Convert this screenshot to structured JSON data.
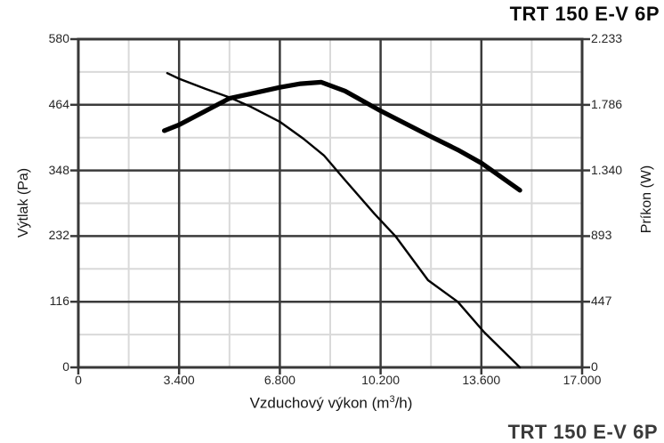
{
  "title": "TRT 150 E-V 6P",
  "footer_cropped_title": "TRT 150 E-V 6P",
  "chart_data": {
    "type": "line",
    "title": "TRT 150 E-V 6P",
    "grid": "major and minor gridlines on",
    "legend": "none",
    "axes": {
      "x": {
        "min": 0,
        "max": 17000,
        "minor_step": 1700,
        "title": {
          "pre": "Vzduchový výkon (m",
          "sup": "3",
          "post": "/h)"
        },
        "ticks": [
          {
            "v": 0,
            "label": "0"
          },
          {
            "v": 3400,
            "label": "3.400"
          },
          {
            "v": 6800,
            "label": "6.800"
          },
          {
            "v": 10200,
            "label": "10.200"
          },
          {
            "v": 13600,
            "label": "13.600"
          },
          {
            "v": 17000,
            "label": "17.000"
          }
        ]
      },
      "y_left": {
        "min": 0,
        "max": 580,
        "minor_step": 58,
        "title": "Výtlak (Pa)",
        "ticks": [
          {
            "v": 580,
            "label": "580"
          },
          {
            "v": 464,
            "label": "464"
          },
          {
            "v": 348,
            "label": "348"
          },
          {
            "v": 232,
            "label": "232"
          },
          {
            "v": 116,
            "label": "116"
          },
          {
            "v": 0,
            "label": "0"
          }
        ]
      },
      "y_right": {
        "min": 0,
        "max": 2233,
        "title": "Príkon (W)",
        "ticks": [
          {
            "v": 2233,
            "label": "2.233"
          },
          {
            "v": 1786,
            "label": "1.786"
          },
          {
            "v": 1340,
            "label": "1.340"
          },
          {
            "v": 893,
            "label": "893"
          },
          {
            "v": 447,
            "label": "447"
          },
          {
            "v": 0,
            "label": "0"
          }
        ]
      }
    },
    "series": [
      {
        "name": "Výtlak (Pa) — pressure curve",
        "axis": "left",
        "line_weight": "thin",
        "color": "#000000",
        "points": [
          [
            3000,
            520
          ],
          [
            3400,
            510
          ],
          [
            4300,
            492
          ],
          [
            5100,
            477
          ],
          [
            5800,
            461
          ],
          [
            6800,
            434
          ],
          [
            7600,
            404
          ],
          [
            8300,
            374
          ],
          [
            9000,
            331
          ],
          [
            10000,
            271
          ],
          [
            10700,
            232
          ],
          [
            11800,
            154
          ],
          [
            12800,
            116
          ],
          [
            13700,
            62
          ],
          [
            14900,
            0
          ]
        ]
      },
      {
        "name": "Príkon (W) — power curve",
        "axis": "right",
        "line_weight": "thick",
        "color": "#000000",
        "points": [
          [
            2900,
            1610
          ],
          [
            3400,
            1650
          ],
          [
            4300,
            1745
          ],
          [
            5100,
            1830
          ],
          [
            5800,
            1860
          ],
          [
            6800,
            1905
          ],
          [
            7500,
            1930
          ],
          [
            8200,
            1940
          ],
          [
            9000,
            1880
          ],
          [
            10200,
            1745
          ],
          [
            11900,
            1570
          ],
          [
            12800,
            1480
          ],
          [
            13600,
            1390
          ],
          [
            14900,
            1205
          ]
        ]
      }
    ],
    "colors": {
      "curve": "#000000",
      "major_grid": "#3b3b3b",
      "minor_grid": "#d9d9d9",
      "frame": "#383838",
      "text": "#262626"
    }
  }
}
